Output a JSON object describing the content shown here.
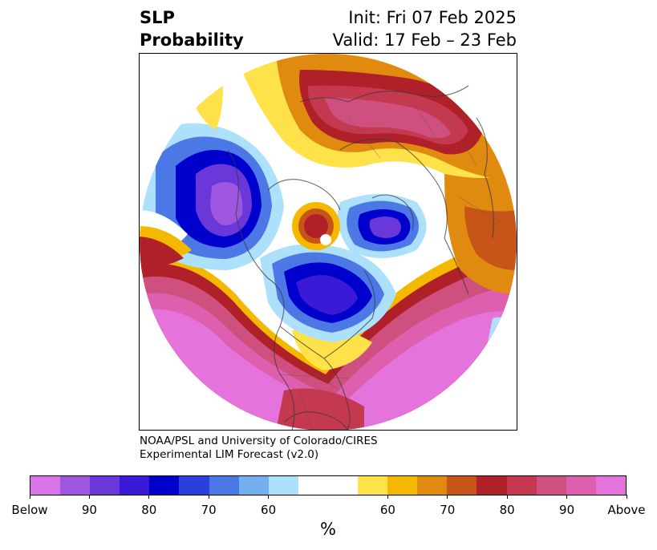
{
  "title": {
    "left_line1": "SLP",
    "left_line2": "Probability",
    "right_line1": "Init: Fri 07 Feb 2025",
    "right_line2": "Valid: 17 Feb – 23 Feb"
  },
  "credit": {
    "line1": "NOAA/PSL and University of Colorado/CIRES",
    "line2": "Experimental LIM Forecast (v2.0)"
  },
  "colorbar": {
    "units": "%",
    "ticks": [
      "Below",
      "90",
      "80",
      "70",
      "60",
      "60",
      "70",
      "80",
      "90",
      "Above"
    ],
    "colors": [
      "#d873e8",
      "#9e55e0",
      "#6a37d8",
      "#3a1ad6",
      "#0000cc",
      "#2a40dc",
      "#4c78e6",
      "#74b0f0",
      "#ade0fb",
      "#ffffff",
      "#ffe24a",
      "#f5b800",
      "#e08a10",
      "#c85518",
      "#b02028",
      "#c43850",
      "#cf4f7e",
      "#dd5fae",
      "#e474dc"
    ]
  },
  "map": {
    "projection": "north-polar-stereographic",
    "field": "sea-level-pressure-probability"
  }
}
